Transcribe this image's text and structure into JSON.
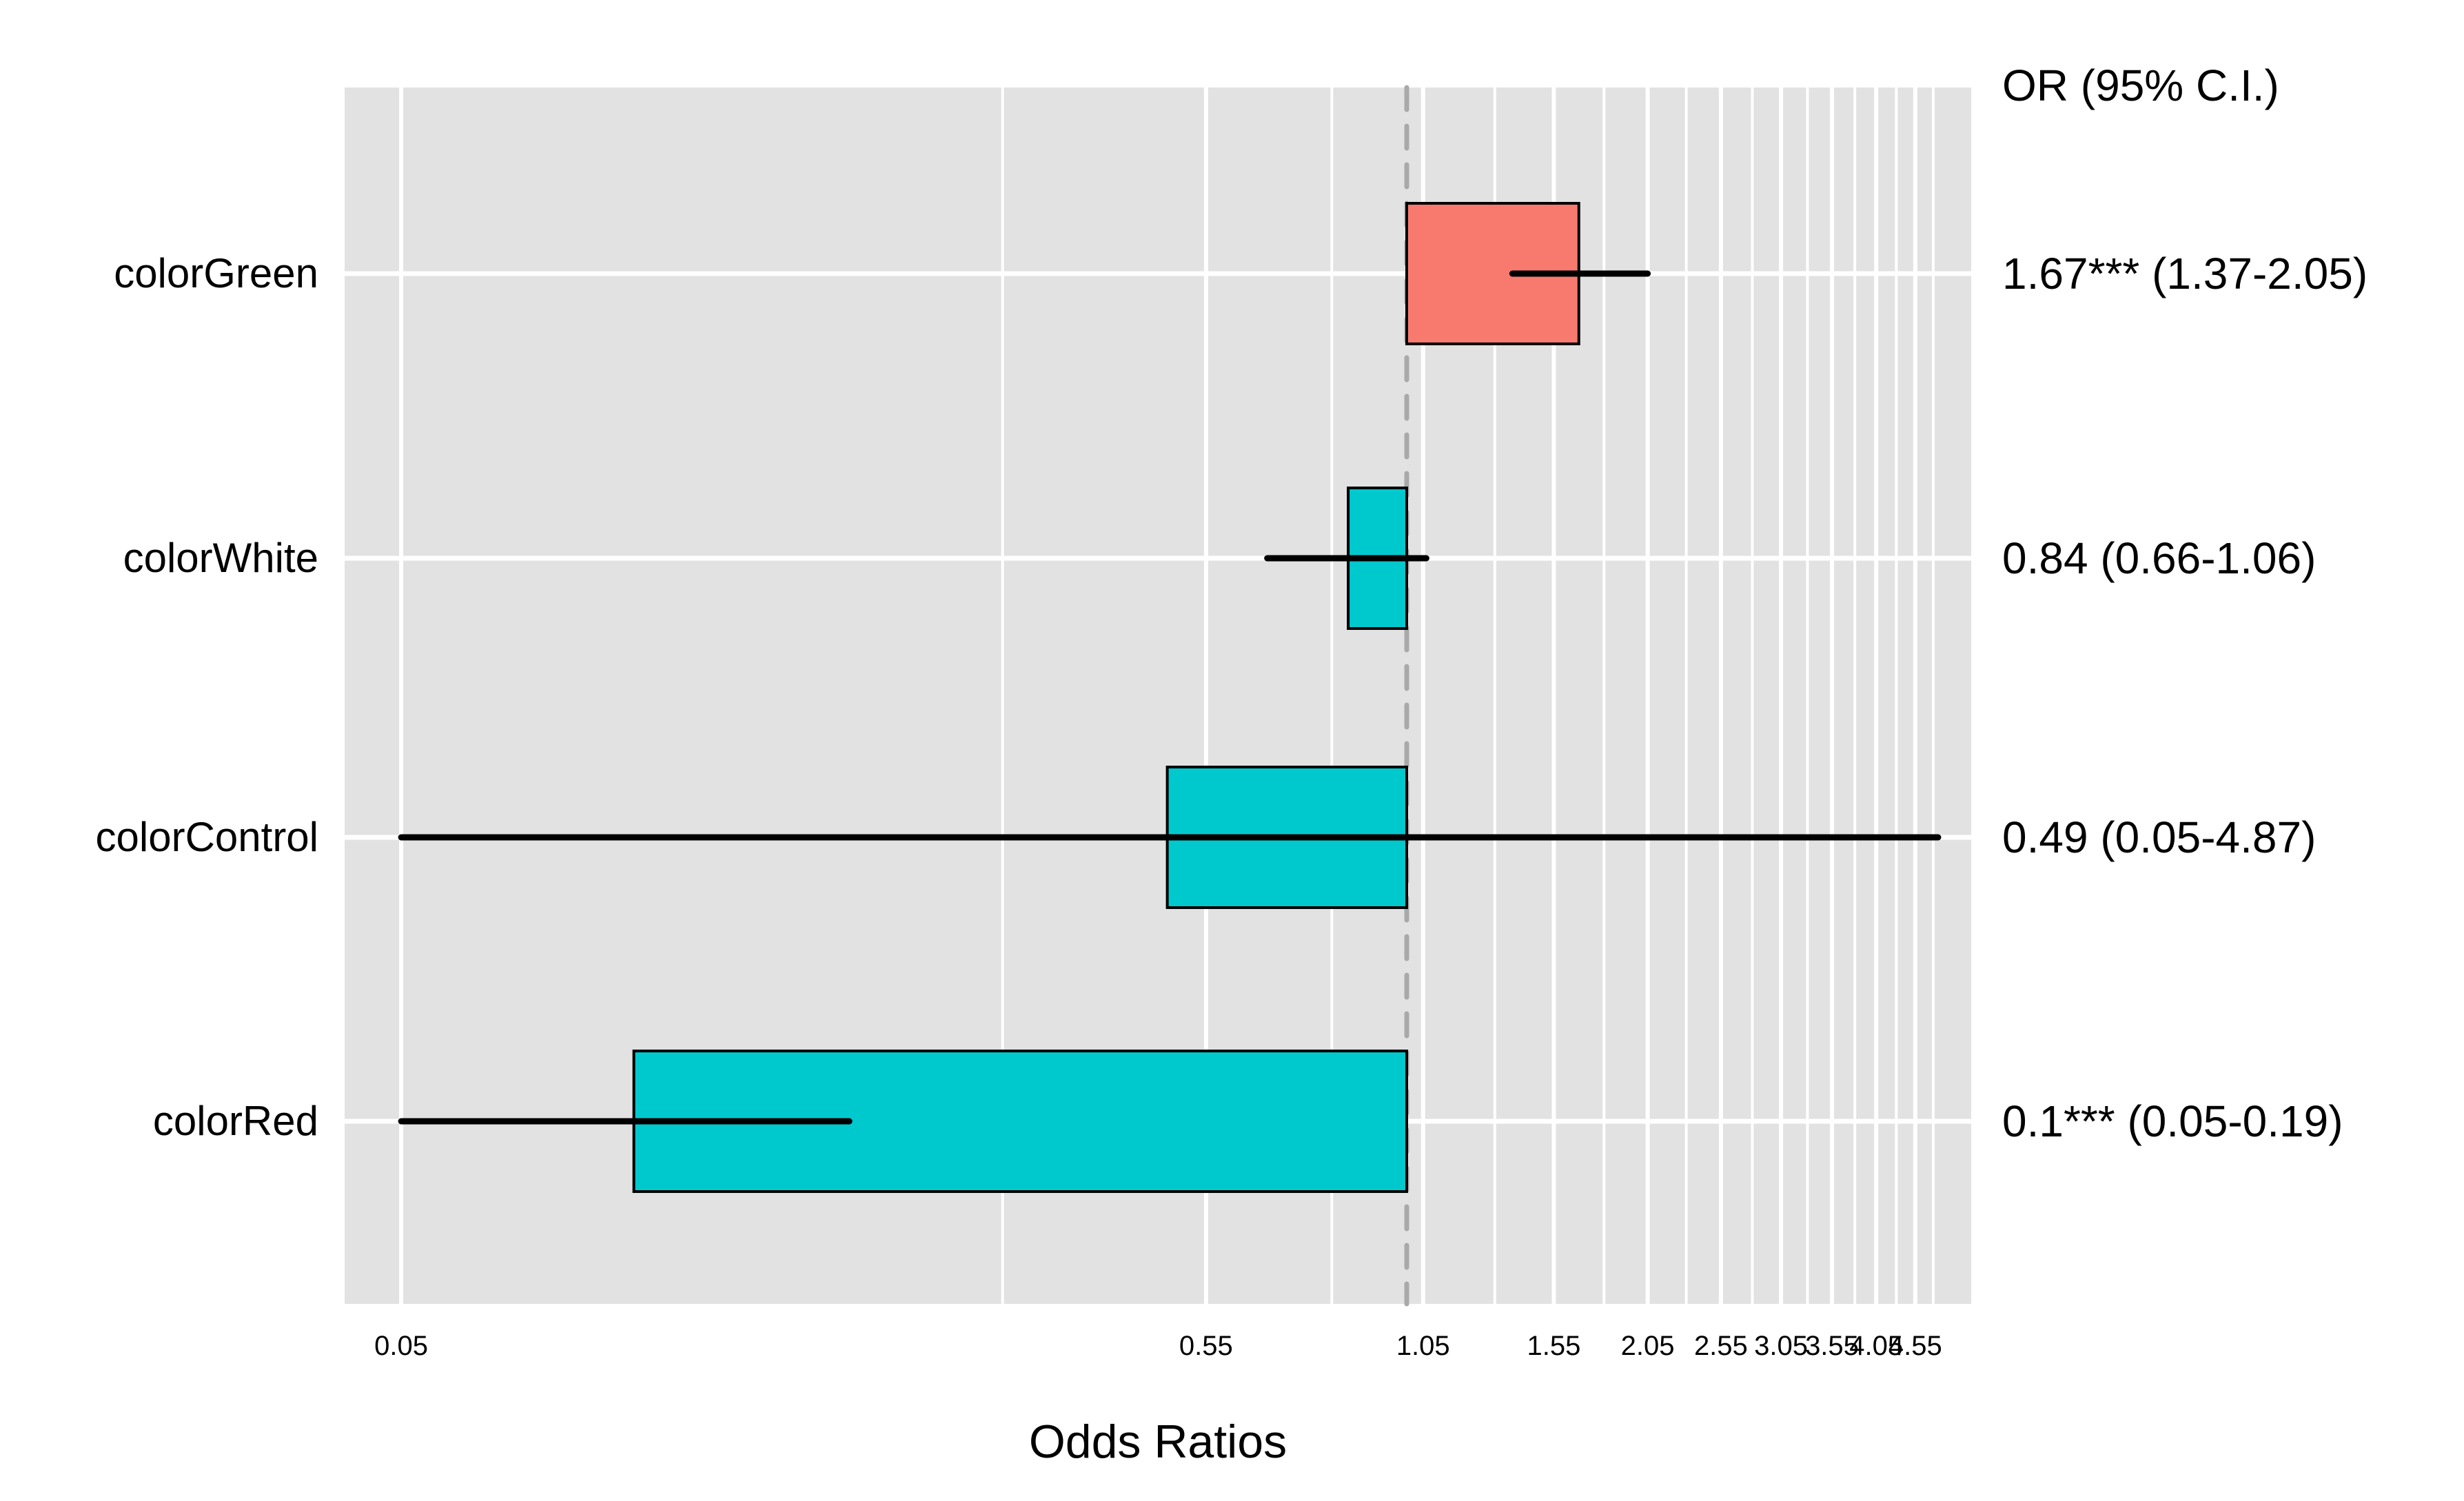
{
  "chart_data": {
    "type": "forest",
    "title": "",
    "xlabel": "Odds Ratios",
    "value_column_header": "OR (95% C.I.)",
    "x_scale": "log",
    "x_ticks": [
      0.05,
      0.55,
      1.05,
      1.55,
      2.05,
      2.55,
      3.05,
      3.55,
      4.05,
      4.55
    ],
    "x_tick_labels": [
      "0.05",
      "0.55",
      "1.05",
      "1.55",
      "2.05",
      "2.55",
      "3.05",
      "3.55",
      "4.05",
      "4.55"
    ],
    "x_minor_ticks": [
      0.3,
      0.8,
      1.3,
      1.8,
      2.3,
      2.8,
      3.3,
      3.8,
      4.3,
      4.8
    ],
    "x_range_approx": [
      0.043,
      5.4
    ],
    "reference_line": 1.0,
    "legend_position": "none",
    "grid": true,
    "rows": [
      {
        "label": "colorGreen",
        "or": 1.67,
        "ci_low": 1.37,
        "ci_high": 2.05,
        "or_text": "1.67*** (1.37-2.05)",
        "significance": "***",
        "direction": "positive"
      },
      {
        "label": "colorWhite",
        "or": 0.84,
        "ci_low": 0.66,
        "ci_high": 1.06,
        "or_text": "0.84 (0.66-1.06)",
        "significance": "",
        "direction": "negative"
      },
      {
        "label": "colorControl",
        "or": 0.49,
        "ci_low": 0.05,
        "ci_high": 4.87,
        "or_text": "0.49 (0.05-4.87)",
        "significance": "",
        "direction": "negative"
      },
      {
        "label": "colorRed",
        "or": 0.1,
        "ci_low": 0.05,
        "ci_high": 0.19,
        "or_text": "0.1*** (0.05-0.19)",
        "significance": "***",
        "direction": "negative"
      }
    ],
    "colors": {
      "positive_bar": "#F8796E",
      "negative_bar": "#00C9CE",
      "bar_border": "#000000",
      "panel_background": "#E2E2E2",
      "gridline": "#FFFFFF",
      "reference_line": "#A9A9A9",
      "whisker": "#000000",
      "text": "#000000"
    }
  }
}
